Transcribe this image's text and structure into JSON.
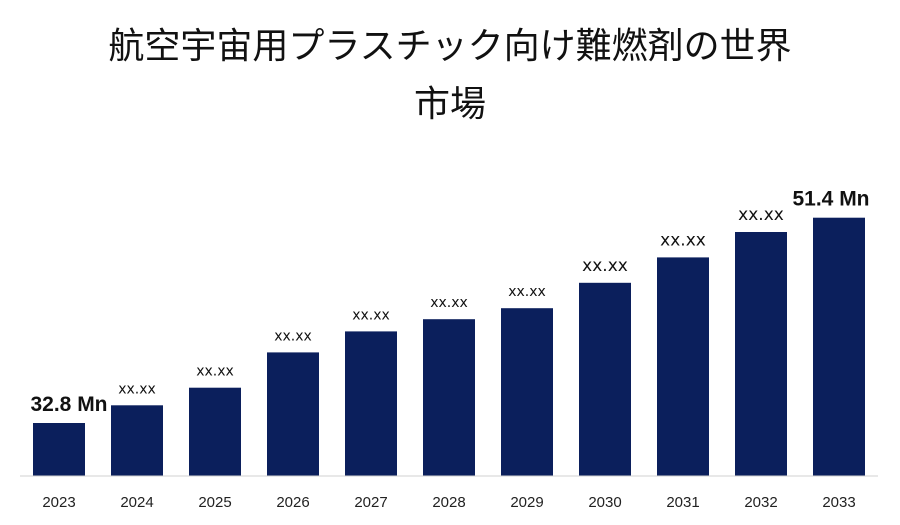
{
  "chart_data": {
    "type": "bar",
    "title_line1": "航空宇宙用プラスチック向け難燃剤の世界",
    "title_line2": "市場",
    "categories": [
      "2023",
      "2024",
      "2025",
      "2026",
      "2027",
      "2028",
      "2029",
      "2030",
      "2031",
      "2032",
      "2033"
    ],
    "values": [
      32.8,
      34.4,
      36.0,
      39.2,
      41.1,
      42.2,
      43.2,
      45.5,
      47.8,
      50.1,
      51.4
    ],
    "data_labels": [
      "32.8 Mn",
      "xx.xx",
      "xx.xx",
      "xx.xx",
      "xx.xx",
      "xx.xx",
      "xx.xx",
      "xx.xx",
      "xx.xx",
      "xx.xx",
      "51.4 Mn"
    ],
    "ylim": [
      28,
      53
    ],
    "xlabel": "",
    "ylabel": "",
    "grid": false,
    "legend": "none",
    "bar_color": "#0b1f5c"
  }
}
